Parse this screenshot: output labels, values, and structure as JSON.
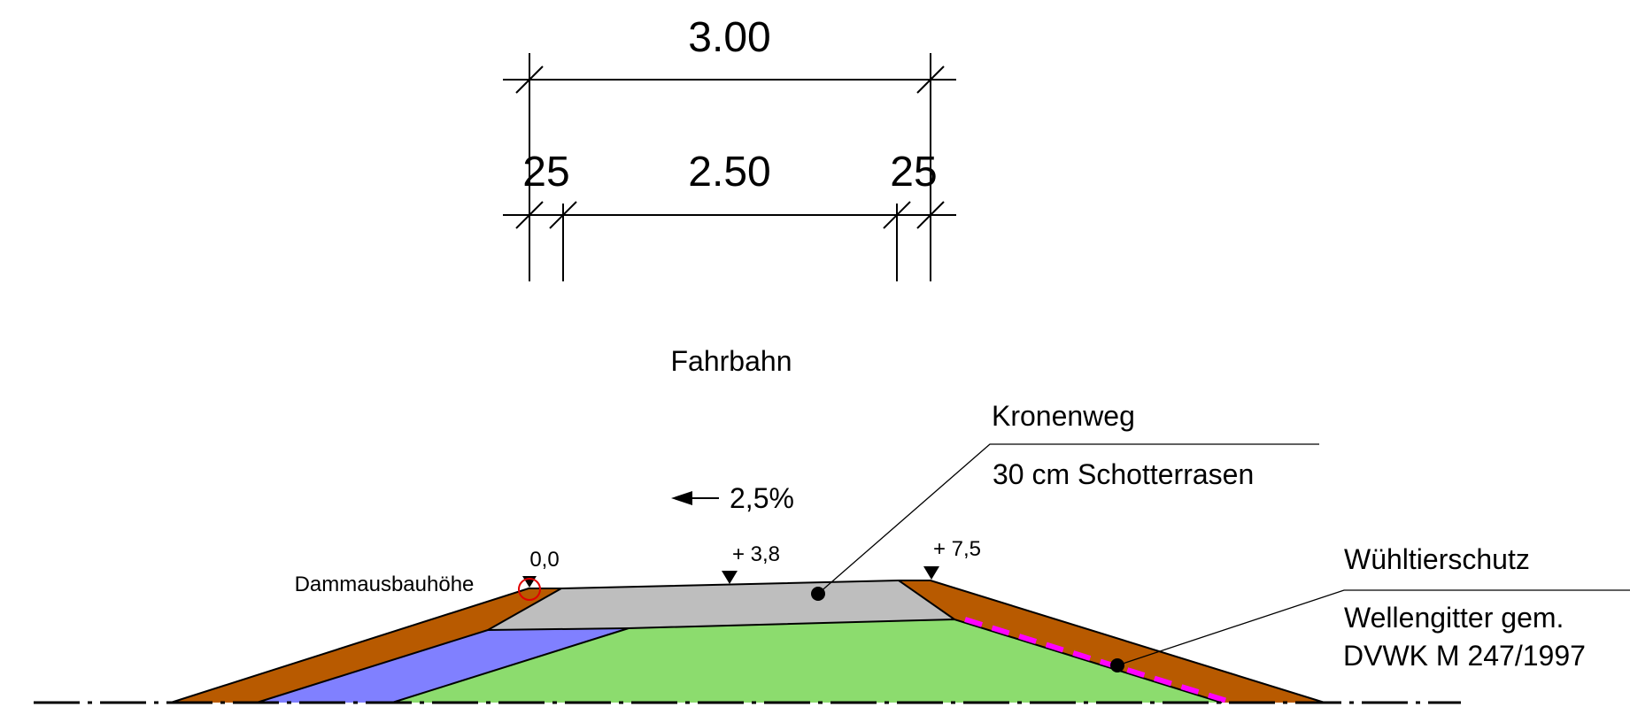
{
  "dimensions": {
    "overall": "3.00",
    "left_edge": "25",
    "inner": "2.50",
    "right_edge": "25"
  },
  "labels": {
    "roadway": "Fahrbahn",
    "slope": "2,5%",
    "crown_title": "Kronenweg",
    "crown_desc": "30 cm Schotterrasen",
    "burrow_title": "Wühltierschutz",
    "burrow_desc_1": "Wellengitter gem.",
    "burrow_desc_2": "DVWK M 247/1997",
    "dam_height": "Dammausbauhöhe"
  },
  "elevations": {
    "left": "0,0",
    "middle": "+ 3,8",
    "right": "+ 7,5"
  },
  "colors": {
    "topsoil": "#B85A00",
    "filter": "#8080FF",
    "core": "#8CDC6E",
    "gravel": "#BEBEBE",
    "mesh": "#FF00FF",
    "marker": "#E00000",
    "ink": "#000000"
  }
}
